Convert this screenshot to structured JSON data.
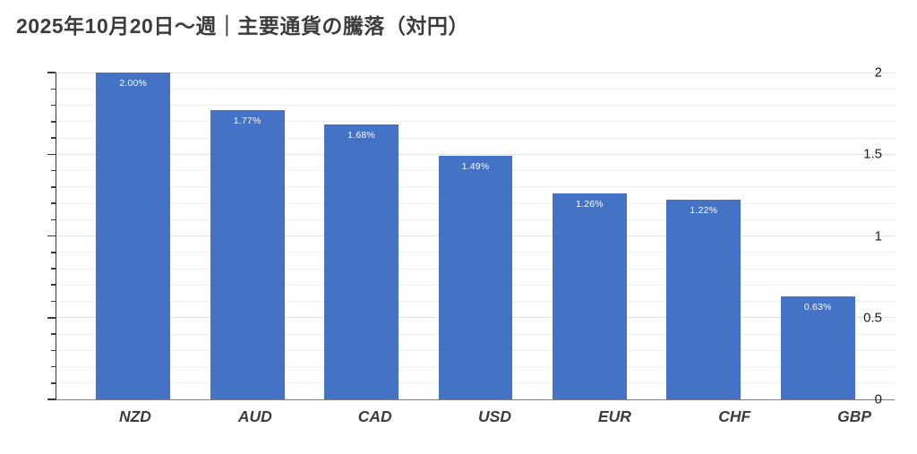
{
  "title": "2025年10月20日～週｜主要通貨の騰落（対円）",
  "chart_data": {
    "type": "bar",
    "title": "2025年10月20日～週｜主要通貨の騰落（対円）",
    "categories": [
      "NZD",
      "AUD",
      "CAD",
      "USD",
      "EUR",
      "CHF",
      "GBP"
    ],
    "values": [
      2.0,
      1.77,
      1.68,
      1.49,
      1.26,
      1.22,
      0.63
    ],
    "value_labels": [
      "2.00%",
      "1.77%",
      "1.68%",
      "1.49%",
      "1.26%",
      "1.22%",
      "0.63%"
    ],
    "xlabel": "",
    "ylabel": "",
    "ylim": [
      0,
      2
    ],
    "yticks": [
      0,
      0.5,
      1,
      1.5,
      2
    ],
    "ytick_labels": [
      "0",
      "0.5",
      "1",
      "1.5",
      "2"
    ],
    "minor_tick_interval": 0.1,
    "grid": true,
    "legend": false,
    "bar_color": "#4472C4",
    "value_label_color": "#ffffff",
    "axis_line_color": "#3a3a3a",
    "baseline_color": "#808080"
  }
}
